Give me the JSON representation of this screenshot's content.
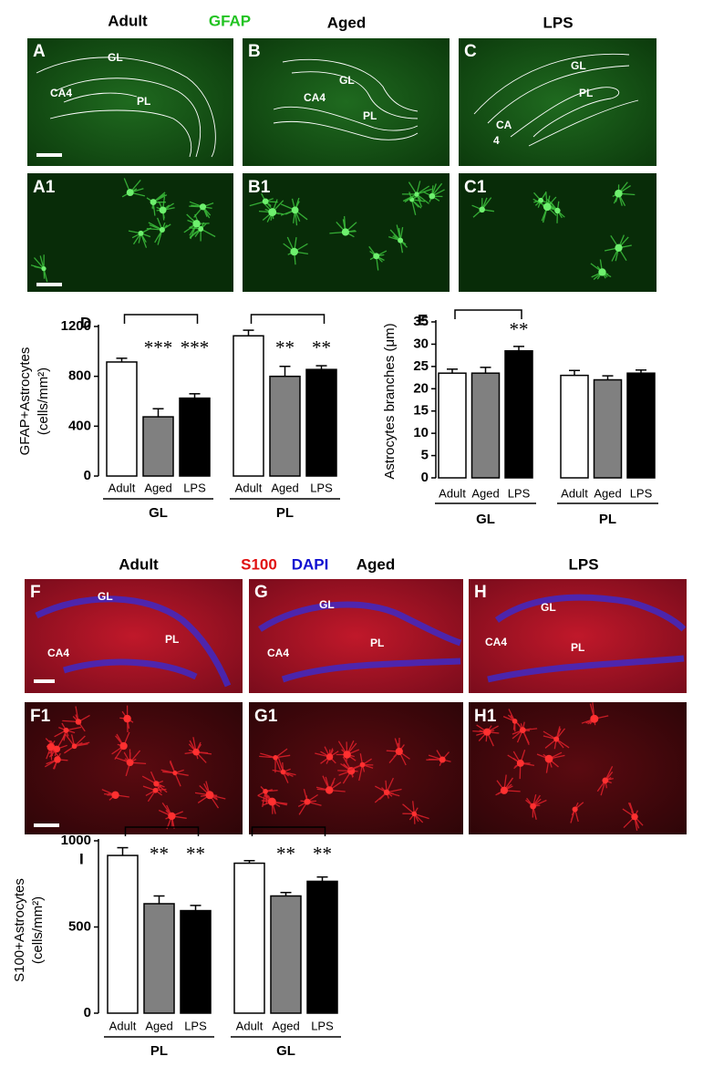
{
  "gfap_figure": {
    "header": [
      "Adult",
      "GFAP",
      "Aged",
      "LPS"
    ],
    "overview": [
      {
        "label": "A",
        "regions": [
          "GL",
          "CA4",
          "PL"
        ]
      },
      {
        "label": "B",
        "regions": [
          "GL",
          "CA4",
          "PL"
        ]
      },
      {
        "label": "C",
        "regions": [
          "GL",
          "PL",
          "CA",
          "4"
        ]
      }
    ],
    "detail": [
      "A1",
      "B1",
      "C1"
    ]
  },
  "s100_figure": {
    "header": [
      "Adult",
      "S100",
      "DAPI",
      "Aged",
      "LPS"
    ],
    "overview": [
      {
        "label": "F",
        "regions": [
          "GL",
          "CA4",
          "PL"
        ]
      },
      {
        "label": "G",
        "regions": [
          "GL",
          "CA4",
          "PL"
        ]
      },
      {
        "label": "H",
        "regions": [
          "GL",
          "CA4",
          "PL"
        ]
      }
    ],
    "detail": [
      "F1",
      "G1",
      "H1"
    ]
  },
  "chart_data": [
    {
      "type": "bar",
      "label": "D",
      "y_label": [
        "GFAP+Astrocytes",
        "(cells/mm²)"
      ],
      "categories": [
        "GL",
        "PL"
      ],
      "series": [
        {
          "name": "Adult",
          "color": "#ffffff",
          "values": [
            915,
            1125
          ],
          "errors": [
            30,
            45
          ]
        },
        {
          "name": "Aged",
          "color": "#808080",
          "values": [
            475,
            800
          ],
          "errors": [
            65,
            80
          ],
          "significance": [
            "***",
            "**"
          ]
        },
        {
          "name": "LPS",
          "color": "#000000",
          "values": [
            625,
            855
          ],
          "errors": [
            35,
            30
          ],
          "significance": [
            "***",
            "**"
          ]
        }
      ],
      "ylim": [
        0,
        1200
      ],
      "yticks": [
        0,
        400,
        800,
        1200
      ]
    },
    {
      "type": "bar",
      "label": "E",
      "y_label": [
        "Astrocytes branches  (μm)"
      ],
      "categories": [
        "GL",
        "PL"
      ],
      "series": [
        {
          "name": "Adult",
          "color": "#ffffff",
          "values": [
            23.5,
            23
          ],
          "errors": [
            0.9,
            1.1
          ]
        },
        {
          "name": "Aged",
          "color": "#808080",
          "values": [
            23.5,
            22
          ],
          "errors": [
            1.3,
            0.9
          ]
        },
        {
          "name": "LPS",
          "color": "#000000",
          "values": [
            28.5,
            23.5
          ],
          "errors": [
            1,
            0.7
          ],
          "significance": [
            "**",
            null
          ]
        }
      ],
      "ylim": [
        0,
        35
      ],
      "yticks": [
        0,
        5,
        10,
        15,
        20,
        25,
        30,
        35
      ]
    },
    {
      "type": "bar",
      "label": "I",
      "y_label": [
        "S100+Astrocytes",
        "(cells/mm²)"
      ],
      "categories": [
        "PL",
        "GL"
      ],
      "series": [
        {
          "name": "Adult",
          "color": "#ffffff",
          "values": [
            915,
            870
          ],
          "errors": [
            45,
            15
          ]
        },
        {
          "name": "Aged",
          "color": "#808080",
          "values": [
            635,
            680
          ],
          "errors": [
            45,
            20
          ],
          "significance": [
            "**",
            "**"
          ]
        },
        {
          "name": "LPS",
          "color": "#000000",
          "values": [
            595,
            765
          ],
          "errors": [
            30,
            25
          ],
          "significance": [
            "**",
            "**"
          ]
        }
      ],
      "ylim": [
        0,
        1000
      ],
      "yticks": [
        0,
        500,
        1000
      ]
    }
  ]
}
